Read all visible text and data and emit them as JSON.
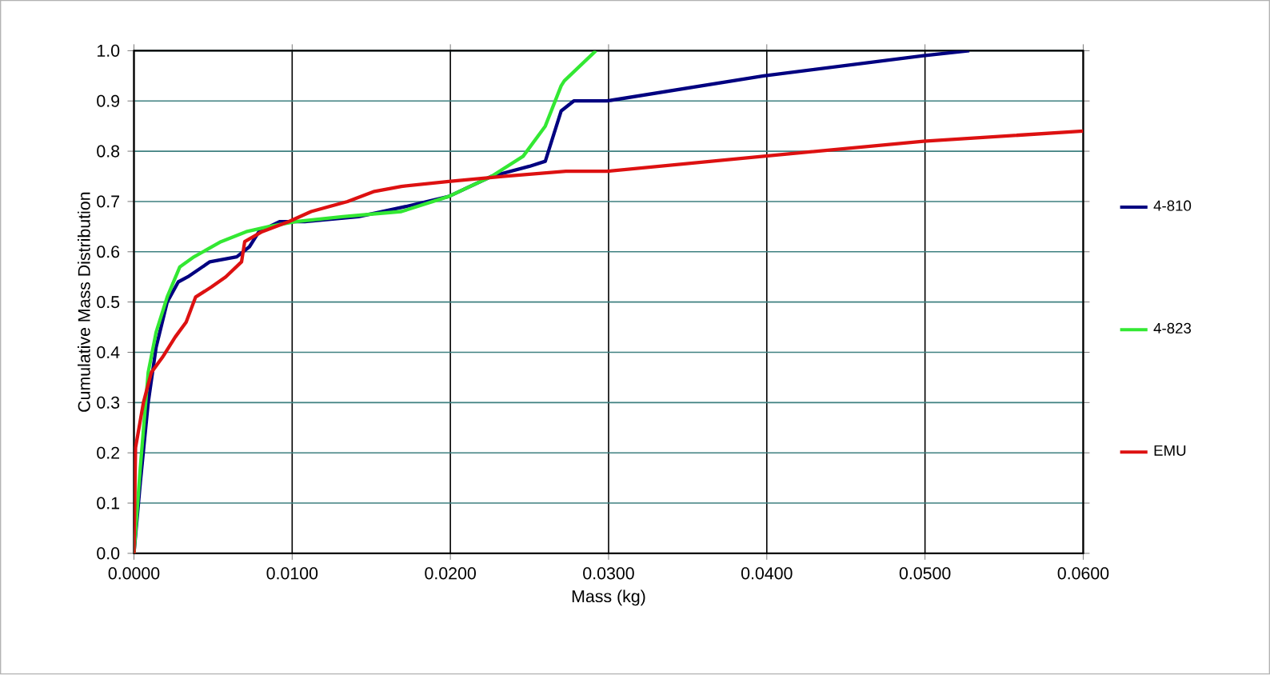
{
  "chart_data": {
    "type": "line",
    "xlabel": "Mass (kg)",
    "ylabel": "Cumulative Mass Distribution",
    "xlim": [
      0,
      0.06
    ],
    "ylim": [
      0,
      1
    ],
    "xticks": [
      {
        "value": 0,
        "label": "0.0000"
      },
      {
        "value": 0.01,
        "label": "0.0100"
      },
      {
        "value": 0.02,
        "label": "0.0200"
      },
      {
        "value": 0.03,
        "label": "0.0300"
      },
      {
        "value": 0.04,
        "label": "0.0400"
      },
      {
        "value": 0.05,
        "label": "0.0500"
      },
      {
        "value": 0.06,
        "label": "0.0600"
      }
    ],
    "yticks": [
      {
        "value": 0,
        "label": "0.0"
      },
      {
        "value": 0.1,
        "label": "0.1"
      },
      {
        "value": 0.2,
        "label": "0.2"
      },
      {
        "value": 0.3,
        "label": "0.3"
      },
      {
        "value": 0.4,
        "label": "0.4"
      },
      {
        "value": 0.5,
        "label": "0.5"
      },
      {
        "value": 0.6,
        "label": "0.6"
      },
      {
        "value": 0.7,
        "label": "0.7"
      },
      {
        "value": 0.8,
        "label": "0.8"
      },
      {
        "value": 0.9,
        "label": "0.9"
      },
      {
        "value": 1,
        "label": "1.0"
      }
    ],
    "grid": true,
    "legend": "right",
    "marker": "none",
    "line_style": "solid",
    "series": [
      {
        "name": "4-810",
        "color": "#000080",
        "x": [
          0,
          0.0004,
          0.0009,
          0.0014,
          0.0021,
          0.0028,
          0.0034,
          0.0048,
          0.0065,
          0.0073,
          0.0079,
          0.0092,
          0.0108,
          0.0142,
          0.0172,
          0.0199,
          0.0226,
          0.025,
          0.026,
          0.0265,
          0.027,
          0.0278,
          0.0299,
          0.0398,
          0.0499,
          0.0528
        ],
        "values": [
          0,
          0.14,
          0.3,
          0.41,
          0.5,
          0.54,
          0.55,
          0.58,
          0.59,
          0.61,
          0.64,
          0.66,
          0.66,
          0.67,
          0.69,
          0.71,
          0.75,
          0.77,
          0.78,
          0.83,
          0.88,
          0.9,
          0.9,
          0.95,
          0.99,
          1.0
        ]
      },
      {
        "name": "4-823",
        "color": "#33e833",
        "x": [
          0,
          0.0004,
          0.0009,
          0.0014,
          0.0021,
          0.0029,
          0.0038,
          0.0055,
          0.0071,
          0.0085,
          0.0102,
          0.0132,
          0.0169,
          0.0199,
          0.0226,
          0.0246,
          0.026,
          0.027,
          0.0272,
          0.0292
        ],
        "values": [
          0,
          0.17,
          0.36,
          0.44,
          0.51,
          0.57,
          0.59,
          0.62,
          0.64,
          0.65,
          0.66,
          0.67,
          0.68,
          0.71,
          0.75,
          0.79,
          0.85,
          0.93,
          0.94,
          1.0
        ]
      },
      {
        "name": "EMU",
        "color": "#dd1111",
        "x": [
          0,
          0.0001,
          0.0006,
          0.0011,
          0.0018,
          0.0026,
          0.0033,
          0.0039,
          0.0049,
          0.0058,
          0.0068,
          0.007,
          0.0081,
          0.0098,
          0.0112,
          0.0135,
          0.0152,
          0.0169,
          0.0199,
          0.0233,
          0.0273,
          0.0299,
          0.0398,
          0.0499,
          0.06
        ],
        "values": [
          0,
          0.21,
          0.3,
          0.36,
          0.39,
          0.43,
          0.46,
          0.51,
          0.53,
          0.55,
          0.58,
          0.62,
          0.64,
          0.66,
          0.68,
          0.7,
          0.72,
          0.73,
          0.74,
          0.75,
          0.76,
          0.76,
          0.79,
          0.82,
          0.84
        ]
      }
    ]
  }
}
